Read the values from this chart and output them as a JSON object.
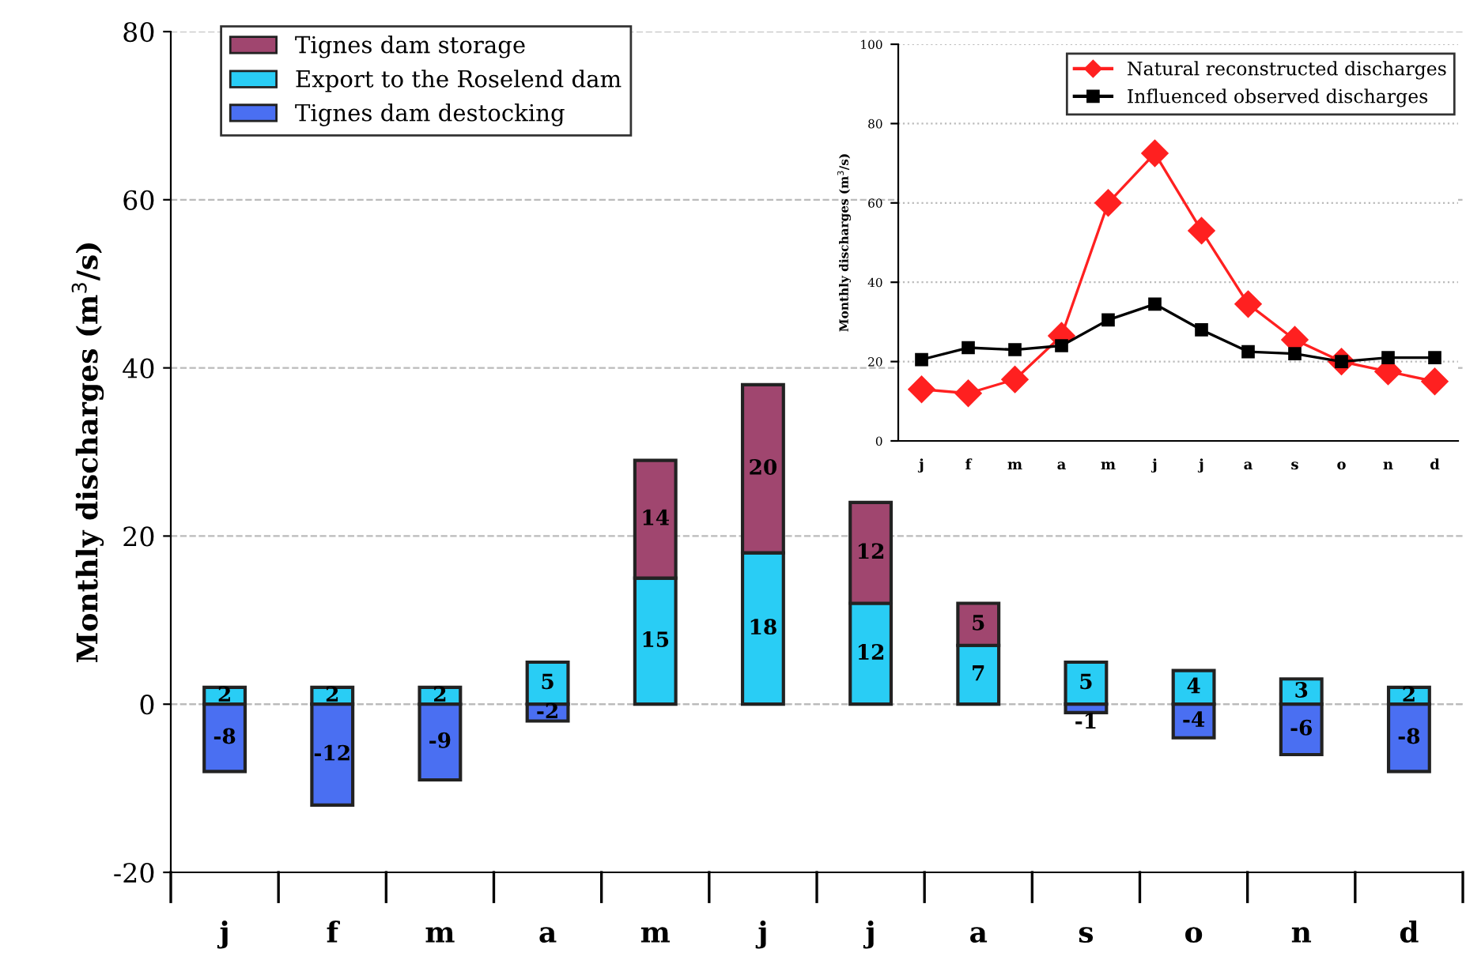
{
  "chart_data": [
    {
      "type": "bar",
      "stacked": true,
      "ylabel": "Monthly discharges (m$^{3}$/s)",
      "categories": [
        "j",
        "f",
        "m",
        "a",
        "m",
        "j",
        "j",
        "a",
        "s",
        "o",
        "n",
        "d"
      ],
      "series": [
        {
          "name": "Export to the Roselend dam",
          "color": "#29cdf5",
          "values": [
            2,
            2,
            2,
            5,
            15,
            18,
            12,
            7,
            5,
            4,
            3,
            2
          ]
        },
        {
          "name": "Tignes dam storage",
          "color": "#a0466f",
          "values": [
            null,
            null,
            null,
            null,
            14,
            20,
            12,
            5,
            null,
            null,
            null,
            null
          ]
        },
        {
          "name": "Tignes dam destocking",
          "color": "#4a6ff2",
          "values": [
            -8,
            -12,
            -9,
            -2,
            null,
            null,
            null,
            null,
            -1,
            -4,
            -6,
            -8
          ]
        }
      ],
      "data_labels": true,
      "ylim": [
        -20,
        80
      ],
      "yticks": [
        -20,
        0,
        20,
        40,
        60,
        80
      ],
      "grid": "y",
      "legend": "top left"
    },
    {
      "type": "line",
      "ylabel": "Monthly discharges (m$^{3}$/s)",
      "categories": [
        "j",
        "f",
        "m",
        "a",
        "m",
        "j",
        "j",
        "a",
        "s",
        "o",
        "n",
        "d"
      ],
      "series": [
        {
          "name": "Natural reconstructed discharges",
          "color": "#ff2020",
          "marker": "diamond",
          "values": [
            13,
            12,
            15.5,
            26.5,
            60,
            72.5,
            53,
            34.5,
            25.5,
            20,
            17.5,
            15
          ]
        },
        {
          "name": "Influenced observed discharges",
          "color": "#000000",
          "marker": "square",
          "values": [
            20.5,
            23.5,
            23,
            24,
            30.5,
            34.5,
            28,
            22.5,
            22,
            20,
            21,
            21
          ]
        }
      ],
      "ylim": [
        0,
        100
      ],
      "yticks": [
        0,
        20,
        40,
        60,
        80,
        100
      ],
      "grid": "y",
      "legend": "top right"
    }
  ]
}
